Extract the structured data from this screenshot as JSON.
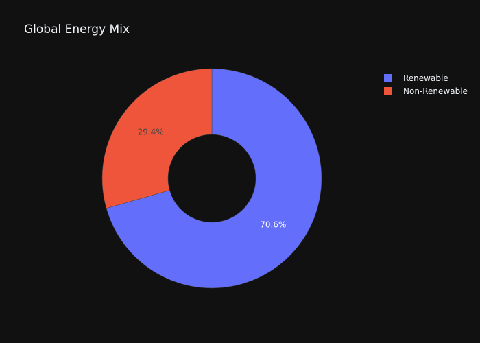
{
  "chart_data": {
    "type": "pie",
    "title": "Global Energy Mix",
    "hole": 0.4,
    "legend_placement": "top-right",
    "categories": [
      "Renewable",
      "Non-Renewable"
    ],
    "values": [
      70.6,
      29.4
    ],
    "labels": [
      "70.6%",
      "29.4%"
    ],
    "colors": [
      "#636efa",
      "#ef553b"
    ],
    "label_colors": [
      "#ffffff",
      "#444444"
    ]
  }
}
